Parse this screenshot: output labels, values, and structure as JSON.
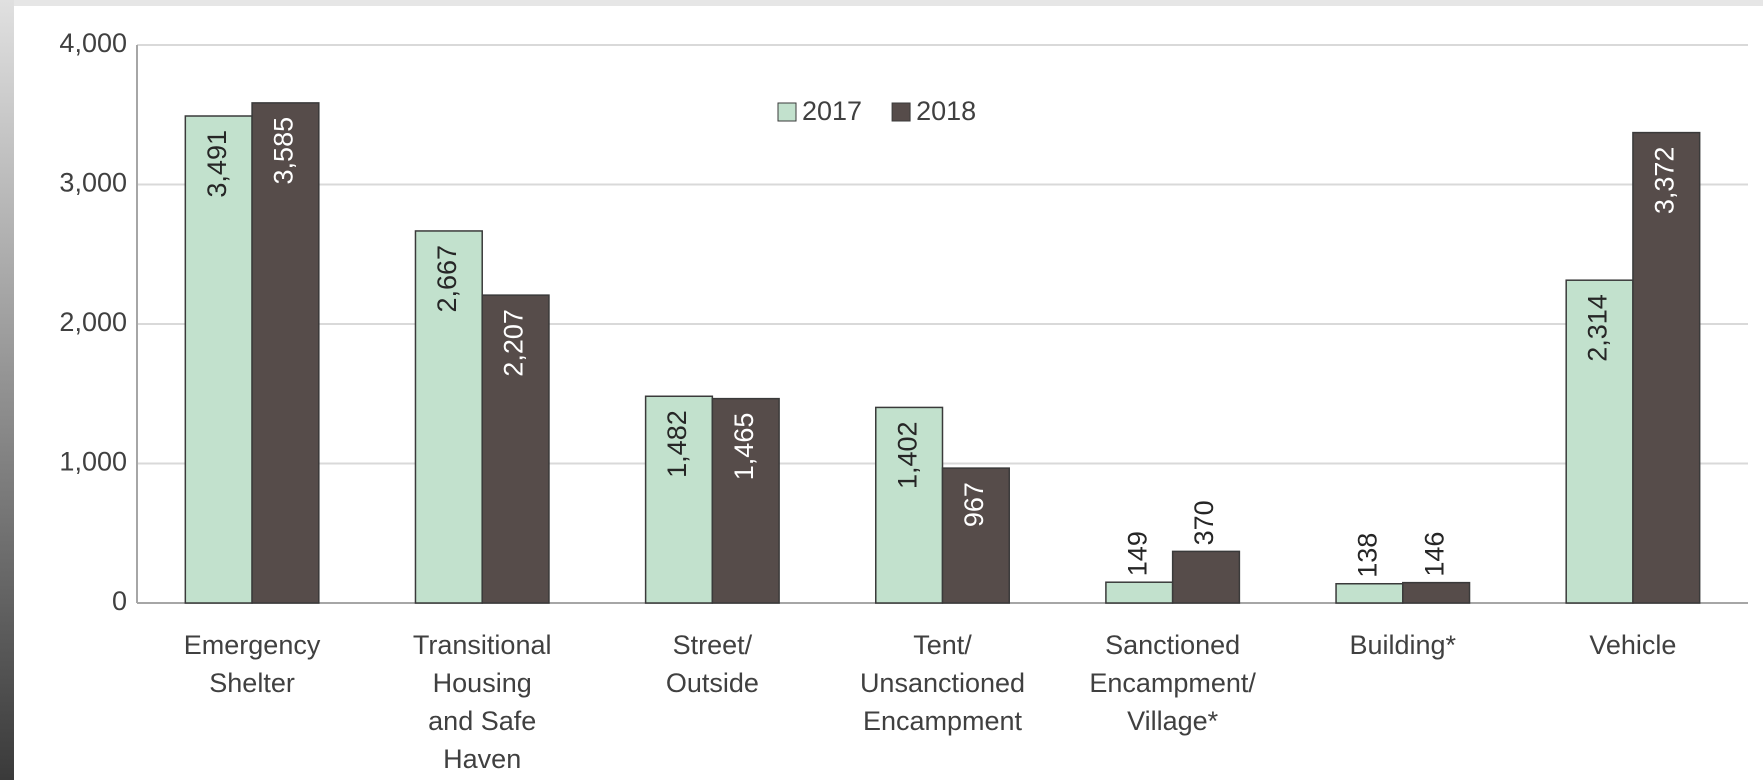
{
  "chart_data": {
    "type": "bar",
    "categories": [
      "Emergency\nShelter",
      "Transitional\nHousing\nand Safe\nHaven",
      "Street/\nOutside",
      "Tent/\nUnsanctioned\nEncampment",
      "Sanctioned\nEncampment/\nVillage*",
      "Building*",
      "Vehicle"
    ],
    "series": [
      {
        "name": "2017",
        "color": "#c2e1cd",
        "values": [
          3491,
          2667,
          1482,
          1402,
          149,
          138,
          2314
        ],
        "value_labels": [
          "3,491",
          "2,667",
          "1,482",
          "1,402",
          "149",
          "138",
          "2,314"
        ]
      },
      {
        "name": "2018",
        "color": "#564c4a",
        "values": [
          3585,
          2207,
          1465,
          967,
          370,
          146,
          3372
        ],
        "value_labels": [
          "3,585",
          "2,207",
          "1,465",
          "967",
          "370",
          "146",
          "3,372"
        ]
      }
    ],
    "ylim": [
      0,
      4000
    ],
    "yticks": [
      0,
      {
        "value": 1000,
        "label": "1,000"
      },
      {
        "value": 2000,
        "label": "2,000"
      },
      {
        "value": 3000,
        "label": "3,000"
      },
      {
        "value": 4000,
        "label": "4,000"
      }
    ],
    "grid": true,
    "legend": "top"
  }
}
